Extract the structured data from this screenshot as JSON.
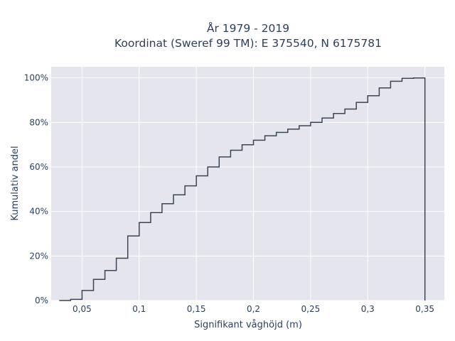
{
  "chart_data": {
    "type": "line",
    "line_shape": "step",
    "title": "År 1979 - 2019",
    "subtitle": "Koordinat (Sweref 99 TM): E 375540, N 6175781",
    "xlabel": "Signifikant våghöjd (m)",
    "ylabel": "Kumulativ andel",
    "xlim": [
      0.023,
      0.367
    ],
    "ylim": [
      0,
      1.05
    ],
    "x_ticks": [
      {
        "value": 0.05,
        "label": "0,05"
      },
      {
        "value": 0.1,
        "label": "0,1"
      },
      {
        "value": 0.15,
        "label": "0,15"
      },
      {
        "value": 0.2,
        "label": "0,2"
      },
      {
        "value": 0.25,
        "label": "0,25"
      },
      {
        "value": 0.3,
        "label": "0,3"
      },
      {
        "value": 0.35,
        "label": "0,35"
      }
    ],
    "y_ticks": [
      {
        "value": 0,
        "label": "0%"
      },
      {
        "value": 0.2,
        "label": "20%"
      },
      {
        "value": 0.4,
        "label": "40%"
      },
      {
        "value": 0.6,
        "label": "60%"
      },
      {
        "value": 0.8,
        "label": "80%"
      },
      {
        "value": 1.0,
        "label": "100%"
      }
    ],
    "grid": true,
    "series": [
      {
        "color": "#3b4554",
        "x": [
          0.03,
          0.04,
          0.05,
          0.06,
          0.07,
          0.08,
          0.09,
          0.1,
          0.11,
          0.12,
          0.13,
          0.14,
          0.15,
          0.16,
          0.17,
          0.18,
          0.19,
          0.2,
          0.21,
          0.22,
          0.23,
          0.24,
          0.25,
          0.26,
          0.27,
          0.28,
          0.29,
          0.3,
          0.31,
          0.32,
          0.33,
          0.34,
          0.35
        ],
        "y": [
          0.0,
          0.005,
          0.045,
          0.095,
          0.135,
          0.19,
          0.29,
          0.35,
          0.395,
          0.435,
          0.475,
          0.515,
          0.56,
          0.6,
          0.645,
          0.675,
          0.7,
          0.72,
          0.74,
          0.755,
          0.77,
          0.785,
          0.8,
          0.82,
          0.84,
          0.86,
          0.89,
          0.92,
          0.955,
          0.985,
          0.998,
          1.0,
          1.0
        ]
      }
    ]
  }
}
